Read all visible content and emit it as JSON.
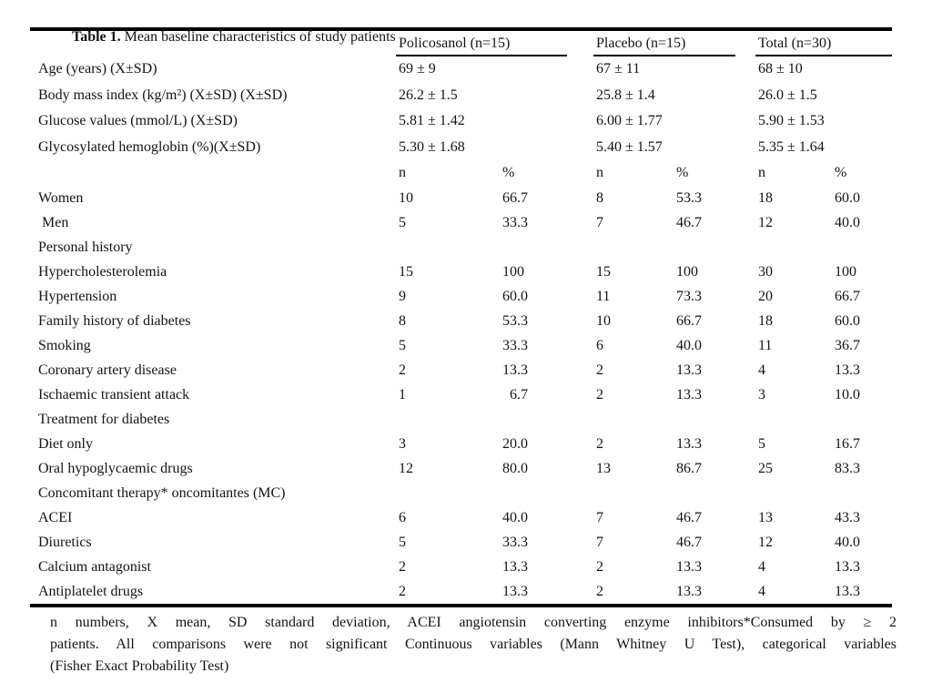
{
  "title": {
    "label": "Table 1.",
    "text_rest": " Mean baseline characteristics of study patients"
  },
  "table": {
    "group_headers": [
      {
        "label": "Policosanol (n=15)"
      },
      {
        "label": "Placebo (n=15)"
      },
      {
        "label": "Total (n=30)"
      }
    ],
    "rows": [
      {
        "type": "mean",
        "label": "Age (years) (X±SD)",
        "values": [
          "69 ± 9",
          "67 ± 11",
          "68 ± 10"
        ]
      },
      {
        "type": "mean",
        "label": "Body mass index (kg/m²) (X±SD) (X±SD)",
        "values": [
          "26.2 ± 1.5",
          "25.8 ± 1.4",
          "26.0 ± 1.5"
        ]
      },
      {
        "type": "mean",
        "label": "Glucose values (mmol/L) (X±SD)",
        "values": [
          "5.81 ± 1.42",
          "6.00 ± 1.77",
          "5.90 ± 1.53"
        ]
      },
      {
        "type": "mean",
        "label": "Glycosylated hemoglobin (%)(X±SD)",
        "values": [
          "5.30 ± 1.68",
          "5.40 ± 1.57",
          "5.35 ± 1.64"
        ]
      },
      {
        "type": "subheader",
        "cells": [
          "n",
          "%",
          "n",
          "%",
          "n",
          "%"
        ]
      },
      {
        "type": "count",
        "label": "Women",
        "cells": [
          "10",
          "66.7",
          "8",
          "53.3",
          "18",
          "60.0"
        ]
      },
      {
        "type": "count",
        "label": " Men",
        "cells": [
          "5",
          "33.3",
          "7",
          "46.7",
          "12",
          "40.0"
        ]
      },
      {
        "type": "section",
        "label": "Personal history"
      },
      {
        "type": "count",
        "label": "Hypercholesterolemia",
        "cells": [
          "15",
          "100",
          "15",
          "100",
          "30",
          "100"
        ]
      },
      {
        "type": "count",
        "label": "Hypertension",
        "cells": [
          "9",
          "60.0",
          "11",
          "73.3",
          "20",
          "66.7"
        ]
      },
      {
        "type": "count",
        "label": "Family history of diabetes",
        "cells": [
          "8",
          "53.3",
          "10",
          "66.7",
          "18",
          "60.0"
        ]
      },
      {
        "type": "count",
        "label": "Smoking",
        "cells": [
          "5",
          "33.3",
          "6",
          "40.0",
          "11",
          "36.7"
        ]
      },
      {
        "type": "count",
        "label": "Coronary artery disease",
        "cells": [
          "2",
          "13.3",
          "2",
          "13.3",
          "4",
          "13.3"
        ]
      },
      {
        "type": "count",
        "label": "Ischaemic transient attack",
        "cells": [
          "1",
          "  6.7",
          "2",
          "13.3",
          "3",
          "10.0"
        ]
      },
      {
        "type": "section",
        "label": "Treatment for diabetes"
      },
      {
        "type": "count",
        "label": "Diet only",
        "cells": [
          "3",
          "20.0",
          "2",
          "13.3",
          "5",
          "16.7"
        ]
      },
      {
        "type": "count",
        "label": "Oral hypoglycaemic drugs",
        "cells": [
          "12",
          "80.0",
          "13",
          "86.7",
          "25",
          "83.3"
        ]
      },
      {
        "type": "section",
        "label": "Concomitant therapy* oncomitantes (MC)"
      },
      {
        "type": "count",
        "label": "ACEI",
        "cells": [
          "6",
          "40.0",
          "7",
          "46.7",
          "13",
          "43.3"
        ]
      },
      {
        "type": "count",
        "label": "Diuretics",
        "cells": [
          "5",
          "33.3",
          "7",
          "46.7",
          "12",
          "40.0"
        ]
      },
      {
        "type": "count",
        "label": "Calcium antagonist",
        "cells": [
          "2",
          "13.3",
          "2",
          "13.3",
          "4",
          "13.3"
        ]
      },
      {
        "type": "count",
        "label": "Antiplatelet drugs",
        "cells": [
          "2",
          "13.3",
          "2",
          "13.3",
          "4",
          "13.3"
        ]
      }
    ]
  },
  "footnote": {
    "lines": [
      "n numbers, X mean, SD standard deviation, ACEI angiotensin converting enzyme inhibitors*Consumed by ≥ 2",
      "patients. All comparisons were not significant Continuous variables (Mann Whitney U Test), categorical variables",
      "(Fisher Exact Probability Test)"
    ]
  },
  "colors": {
    "text": "#141414",
    "rule": "#000000",
    "background": "#ffffff"
  }
}
